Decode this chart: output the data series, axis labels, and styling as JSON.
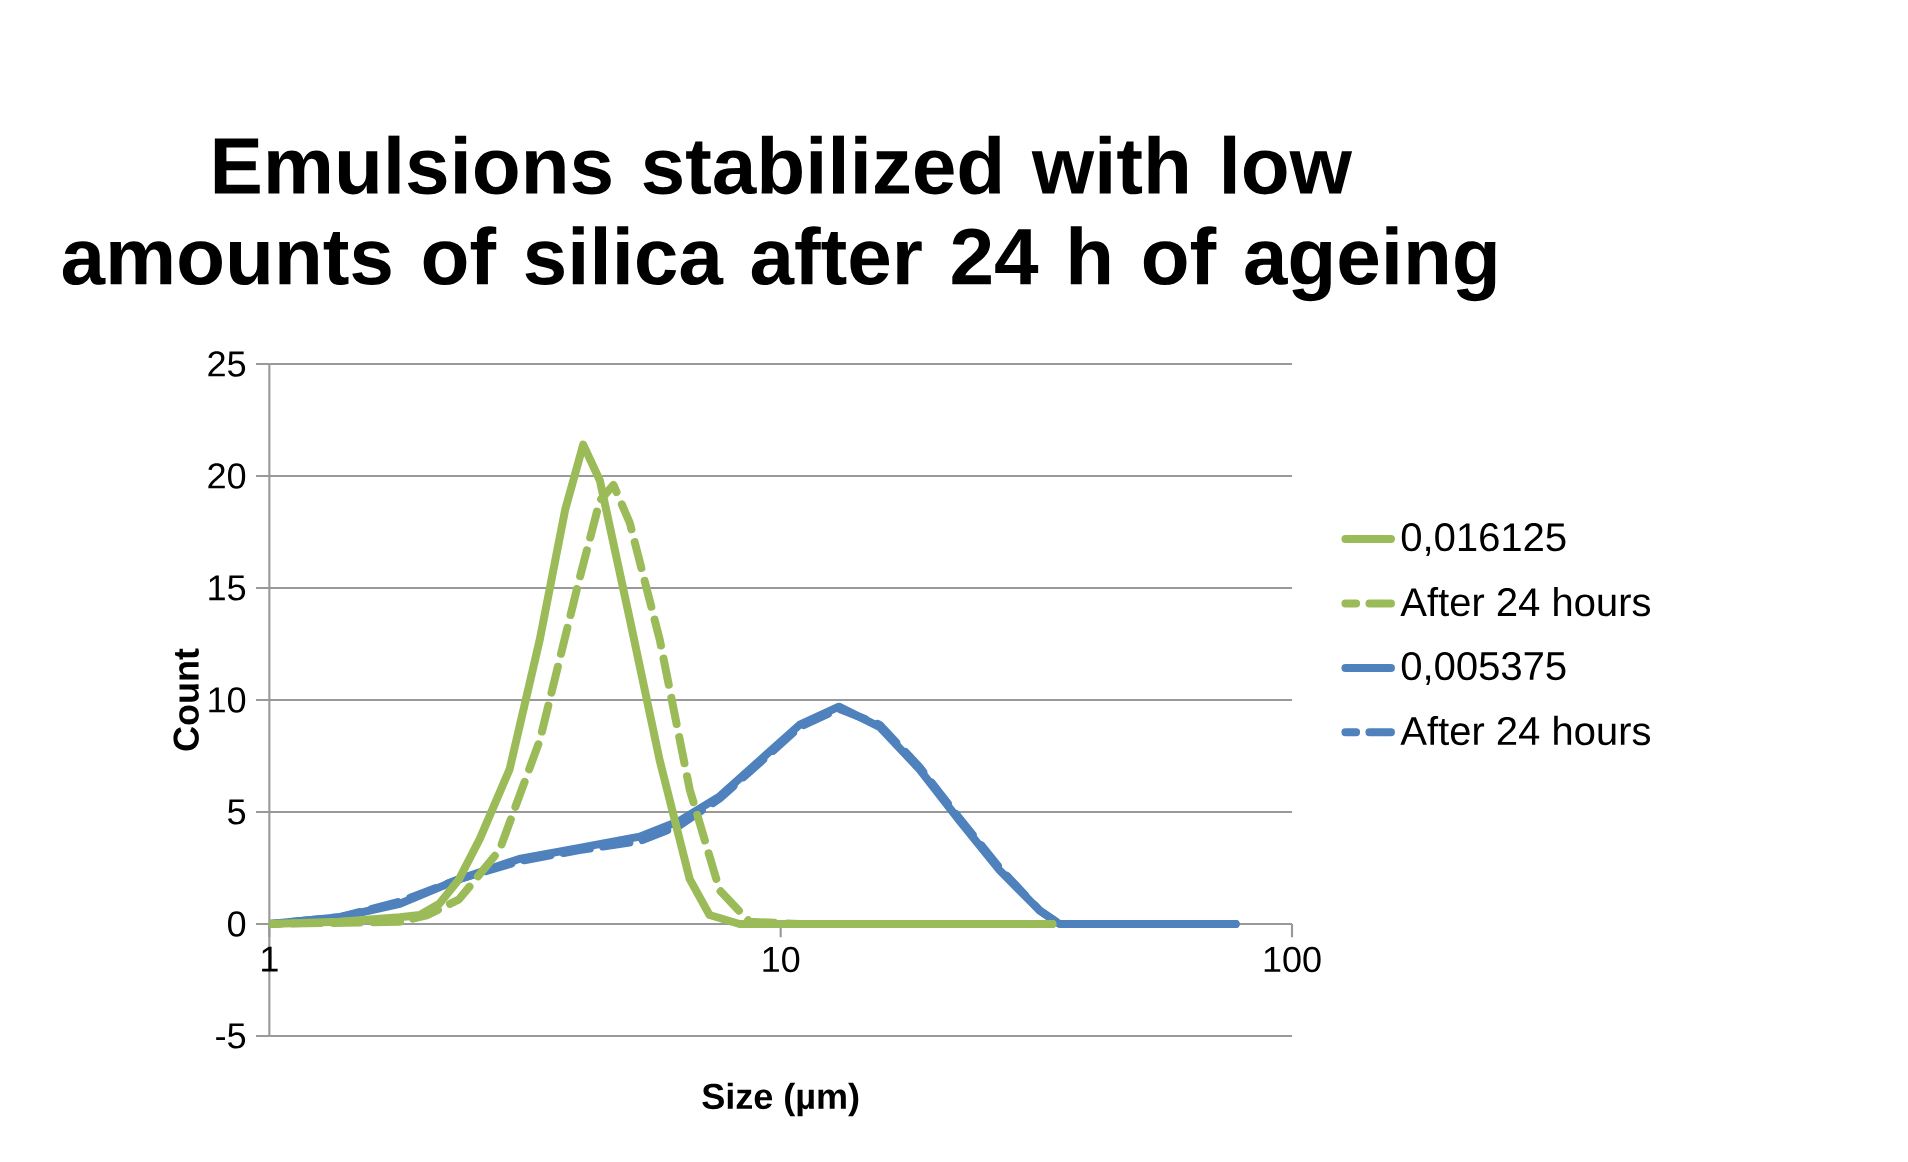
{
  "chart_data": {
    "type": "line",
    "title": "Emulsions stabilized with low amounts of silica after 24 h of ageing",
    "xlabel": "Size (µm)",
    "ylabel": "Count",
    "log": "x",
    "xlim": [
      1,
      100
    ],
    "xticks": [
      1,
      10,
      100
    ],
    "ylim": [
      -5,
      25
    ],
    "yticks": [
      -5,
      0,
      5,
      10,
      15,
      20,
      25
    ],
    "grid": "y",
    "legend": "right",
    "marker": "none",
    "series": [
      {
        "name": "0,016125",
        "color": "#9bbb59",
        "line_style": "solid",
        "x": [
          1,
          1.37,
          1.8,
          1.97,
          2.15,
          2.35,
          2.58,
          2.95,
          3.38,
          3.79,
          4.11,
          4.43,
          5.07,
          5.8,
          6.64,
          7.26,
          8.31,
          10.9,
          26.8,
          34.0
        ],
        "values": [
          0,
          0.1,
          0.3,
          0.4,
          0.9,
          2.0,
          3.8,
          6.9,
          12.7,
          18.5,
          21.4,
          19.8,
          13.6,
          7.3,
          2.0,
          0.4,
          0,
          0,
          0,
          0
        ]
      },
      {
        "name": "After 24 hours",
        "color": "#9bbb59",
        "line_style": "dashed",
        "x": [
          1,
          1.8,
          2.04,
          2.35,
          2.82,
          3.38,
          4.04,
          4.43,
          4.71,
          5.07,
          5.8,
          6.64,
          7.6,
          8.69,
          10.9,
          34.0
        ],
        "values": [
          0,
          0.1,
          0.4,
          1.1,
          3.3,
          8.2,
          15.4,
          18.9,
          19.6,
          17.9,
          12.7,
          6.0,
          1.5,
          0.1,
          0,
          0
        ]
      },
      {
        "name": "0,005375",
        "color": "#4f81bd",
        "line_style": "solid",
        "x": [
          1,
          1.37,
          1.8,
          2.35,
          3.08,
          4.04,
          5.3,
          6.34,
          7.6,
          9.1,
          10.9,
          13.0,
          15.6,
          18.7,
          22.4,
          26.8,
          32.1,
          35.1,
          77.6
        ],
        "values": [
          0,
          0.3,
          0.9,
          2.0,
          2.9,
          3.4,
          3.9,
          4.6,
          5.7,
          7.3,
          8.9,
          9.7,
          8.8,
          6.9,
          4.6,
          2.4,
          0.6,
          0,
          0
        ]
      },
      {
        "name": "After 24 hours",
        "color": "#4f81bd",
        "line_style": "dashed",
        "x": [
          1,
          1.37,
          1.8,
          2.35,
          3.08,
          4.04,
          5.3,
          6.34,
          7.6,
          9.1,
          10.9,
          13.0,
          15.6,
          18.7,
          22.4,
          26.8,
          32.1,
          35.1,
          77.6
        ],
        "values": [
          0,
          0.3,
          1.0,
          2.0,
          2.8,
          3.3,
          3.7,
          4.4,
          5.6,
          7.2,
          8.8,
          9.6,
          8.9,
          7.0,
          4.7,
          2.5,
          0.6,
          0,
          0
        ]
      }
    ]
  }
}
